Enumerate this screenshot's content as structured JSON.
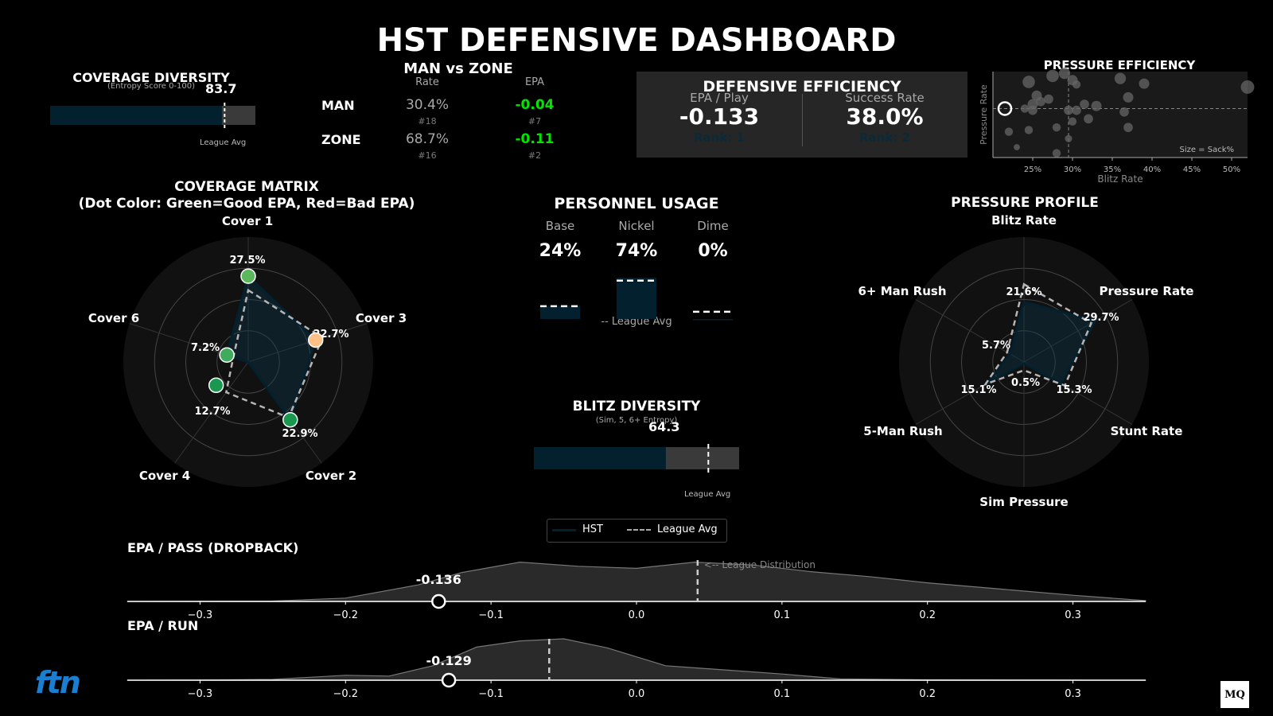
{
  "colors": {
    "bg": "#000000",
    "panel": "#1a1a1a",
    "team": "#03202e",
    "good": "#00e600",
    "league": "#cccccc",
    "neutral": "#3a3a3a"
  },
  "title": "HST DEFENSIVE DASHBOARD",
  "coverage_diversity": {
    "title": "COVERAGE DIVERSITY",
    "subtitle": "(Entropy Score 0-100)",
    "value_text": "83.7",
    "value": 83.7,
    "league_avg": 85,
    "league_label": "League Avg"
  },
  "man_zone": {
    "title": "MAN vs ZONE",
    "col_rate": "Rate",
    "col_epa": "EPA",
    "rows": [
      {
        "label": "MAN",
        "rate": "30.4%",
        "rate_rank": "#18",
        "epa": "-0.04",
        "epa_rank": "#7"
      },
      {
        "label": "ZONE",
        "rate": "68.7%",
        "rate_rank": "#16",
        "epa": "-0.11",
        "epa_rank": "#2"
      }
    ]
  },
  "def_eff": {
    "title": "DEFENSIVE EFFICIENCY",
    "epa_label": "EPA / Play",
    "epa_value": "-0.133",
    "epa_rank": "Rank: 1",
    "success_label": "Success Rate",
    "success_value": "38.0%",
    "success_rank": "Rank: 2"
  },
  "coverage_matrix": {
    "title": "COVERAGE MATRIX",
    "subtitle": "(Dot Color: Green=Good EPA, Red=Bad EPA)"
  },
  "personnel": {
    "title": "PERSONNEL USAGE",
    "legend": "-- League Avg"
  },
  "blitz_diversity": {
    "title": "BLITZ DIVERSITY",
    "subtitle": "(Sim, 5, 6+ Entropy)",
    "value_text": "64.3",
    "value": 64.3,
    "league_avg": 85,
    "league_label": "League Avg"
  },
  "pressure_profile": {
    "title": "PRESSURE PROFILE"
  },
  "legend": {
    "team": "HST",
    "league": "League Avg"
  },
  "logos": {
    "left": "ftn",
    "right": "MQ"
  },
  "chart_data": [
    {
      "type": "radar",
      "id": "coverage-matrix",
      "axes": [
        "Cover 1",
        "Cover 3",
        "Cover 2",
        "Cover 4",
        "Cover 6"
      ],
      "rmax": 40,
      "series": [
        {
          "name": "HST",
          "values": [
            27.5,
            22.7,
            22.9,
            0,
            7.2
          ],
          "labels": [
            "27.5%",
            "22.7%",
            "22.9%",
            "",
            "7.2%"
          ]
        },
        {
          "name": "League Avg",
          "values": [
            23,
            25,
            22,
            12,
            5
          ]
        }
      ],
      "extra_points": [
        {
          "label": "12.7%",
          "angle_deg": 234,
          "value": 12.7
        }
      ],
      "dot_colors": [
        "#5cb85c",
        "#fdc086",
        "#1a9850",
        "#1a9850",
        "#41ab5d"
      ]
    },
    {
      "type": "bar",
      "id": "personnel-usage",
      "categories": [
        "Base",
        "Nickel",
        "Dime"
      ],
      "values": [
        24,
        74,
        0
      ],
      "value_labels": [
        "24%",
        "74%",
        "0%"
      ],
      "league_avg": [
        23,
        69,
        13
      ],
      "ylim": [
        0,
        100
      ]
    },
    {
      "type": "radar",
      "id": "pressure-profile",
      "axes": [
        "Blitz Rate",
        "Pressure Rate",
        "Stunt Rate",
        "Sim Pressure",
        "5-Man Rush",
        "6+ Man Rush"
      ],
      "rmax": 45,
      "series": [
        {
          "name": "HST",
          "values": [
            21.6,
            29.7,
            15.3,
            0.5,
            15.1,
            5.7
          ],
          "labels": [
            "21.6%",
            "29.7%",
            "15.3%",
            "0.5%",
            "15.1%",
            "5.7%"
          ]
        },
        {
          "name": "League Avg",
          "values": [
            28,
            28,
            17,
            3,
            16,
            7
          ]
        }
      ]
    },
    {
      "type": "scatter",
      "id": "pressure-efficiency",
      "title": "PRESSURE EFFICIENCY",
      "xlabel": "Blitz Rate",
      "ylabel": "Pressure Rate",
      "xticks": [
        "25%",
        "30%",
        "35%",
        "40%",
        "45%",
        "50%"
      ],
      "xtick_values": [
        25,
        30,
        35,
        40,
        45,
        50
      ],
      "xlim": [
        20,
        52
      ],
      "ylim": [
        0,
        1
      ],
      "note": "Size = Sack%",
      "team_point": {
        "x": 21.5,
        "y": 0.57
      },
      "avg_x": 29.5,
      "avg_y": 0.57,
      "points": [
        [
          24.5,
          0.88
        ],
        [
          25.5,
          0.72
        ],
        [
          26,
          0.65
        ],
        [
          24,
          0.57
        ],
        [
          25,
          0.62
        ],
        [
          27,
          0.68
        ],
        [
          27.5,
          0.95
        ],
        [
          29,
          0.98
        ],
        [
          30,
          0.9
        ],
        [
          30.5,
          0.85
        ],
        [
          29.5,
          0.55
        ],
        [
          30,
          0.42
        ],
        [
          31.5,
          0.62
        ],
        [
          33,
          0.6
        ],
        [
          32,
          0.45
        ],
        [
          36,
          0.92
        ],
        [
          37,
          0.7
        ],
        [
          36.5,
          0.53
        ],
        [
          37,
          0.35
        ],
        [
          39,
          0.86
        ],
        [
          52,
          0.82
        ],
        [
          22,
          0.3
        ],
        [
          24.5,
          0.32
        ],
        [
          28,
          0.35
        ],
        [
          29.5,
          0.22
        ],
        [
          23,
          0.12
        ],
        [
          28,
          0.05
        ],
        [
          30.5,
          0.55
        ],
        [
          25,
          0.55
        ]
      ],
      "sizes": [
        12,
        10,
        9,
        8,
        10,
        9,
        12,
        11,
        10,
        8,
        9,
        8,
        9,
        10,
        9,
        11,
        10,
        9,
        9,
        10,
        13,
        8,
        8,
        8,
        7,
        6,
        8,
        9,
        9
      ]
    },
    {
      "type": "area",
      "id": "epa-pass",
      "title": "EPA / PASS (DROPBACK)",
      "annotation": "<-- League Distribution",
      "xlim": [
        -0.35,
        0.35
      ],
      "xticks": [
        "−0.3",
        "−0.2",
        "−0.1",
        "0.0",
        "0.1",
        "0.2",
        "0.3"
      ],
      "xtick_values": [
        -0.3,
        -0.2,
        -0.1,
        0.0,
        0.1,
        0.2,
        0.3
      ],
      "team_value": -0.136,
      "team_label": "-0.136",
      "league_avg": 0.042,
      "density": [
        [
          -0.35,
          0
        ],
        [
          -0.3,
          0.005
        ],
        [
          -0.25,
          0.01
        ],
        [
          -0.2,
          0.08
        ],
        [
          -0.15,
          0.4
        ],
        [
          -0.12,
          0.7
        ],
        [
          -0.08,
          0.95
        ],
        [
          -0.04,
          0.85
        ],
        [
          0.0,
          0.8
        ],
        [
          0.04,
          0.95
        ],
        [
          0.08,
          0.88
        ],
        [
          0.12,
          0.72
        ],
        [
          0.16,
          0.6
        ],
        [
          0.2,
          0.45
        ],
        [
          0.25,
          0.3
        ],
        [
          0.3,
          0.15
        ],
        [
          0.35,
          0.02
        ]
      ]
    },
    {
      "type": "area",
      "id": "epa-run",
      "title": "EPA / RUN",
      "xlim": [
        -0.35,
        0.35
      ],
      "xticks": [
        "−0.3",
        "−0.2",
        "−0.1",
        "0.0",
        "0.1",
        "0.2",
        "0.3"
      ],
      "xtick_values": [
        -0.3,
        -0.2,
        -0.1,
        0.0,
        0.1,
        0.2,
        0.3
      ],
      "team_value": -0.129,
      "team_label": "-0.129",
      "league_avg": -0.06,
      "density": [
        [
          -0.35,
          0
        ],
        [
          -0.3,
          0.005
        ],
        [
          -0.25,
          0.02
        ],
        [
          -0.2,
          0.12
        ],
        [
          -0.17,
          0.1
        ],
        [
          -0.14,
          0.35
        ],
        [
          -0.11,
          0.8
        ],
        [
          -0.08,
          0.95
        ],
        [
          -0.05,
          1.0
        ],
        [
          -0.02,
          0.78
        ],
        [
          0.02,
          0.35
        ],
        [
          0.06,
          0.25
        ],
        [
          0.1,
          0.15
        ],
        [
          0.14,
          0.03
        ],
        [
          0.2,
          0.01
        ],
        [
          0.35,
          0
        ]
      ]
    }
  ]
}
